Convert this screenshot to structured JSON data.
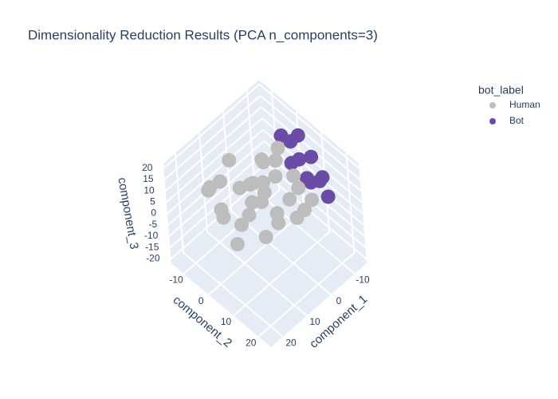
{
  "chart_data": {
    "type": "scatter3d",
    "title": "Dimensionality Reduction Results (PCA n_components=3)",
    "legend_title": "bot_label",
    "xlabel": "component_1",
    "ylabel": "component_2",
    "zlabel": "component_3",
    "xlim": [
      -15,
      25
    ],
    "ylim": [
      -15,
      25
    ],
    "zlim": [
      -22,
      22
    ],
    "xticks": [
      -10,
      0,
      10,
      20
    ],
    "yticks": [
      -10,
      0,
      10,
      20
    ],
    "zticks": [
      -20,
      -15,
      -10,
      -5,
      0,
      5,
      10,
      15,
      20
    ],
    "series": [
      {
        "name": "Human",
        "color": "#bdbdbd",
        "x": [
          0,
          5,
          -5,
          10,
          -8,
          3,
          8,
          -3,
          12,
          -10,
          6,
          -6,
          2,
          14,
          -2,
          9,
          -12,
          4,
          -4,
          1,
          11,
          7,
          -7,
          0,
          15,
          -1,
          13,
          -9,
          3,
          -11
        ],
        "y": [
          0,
          -5,
          5,
          0,
          -3,
          8,
          -10,
          -8,
          -6,
          2,
          5,
          10,
          -12,
          2,
          3,
          9,
          -6,
          -3,
          -4,
          6,
          -12,
          2,
          7,
          -6,
          -2,
          12,
          -9,
          -10,
          3,
          8
        ],
        "z": [
          0,
          2,
          -3,
          -5,
          4,
          1,
          3,
          -6,
          -2,
          0,
          6,
          -4,
          5,
          -8,
          8,
          -3,
          3,
          -9,
          6,
          -7,
          0,
          4,
          2,
          -2,
          1,
          -1,
          6,
          -3,
          10,
          -6
        ]
      },
      {
        "name": "Bot",
        "color": "#6a4ca6",
        "x": [
          -10,
          -12,
          -8,
          -13,
          -11,
          -6,
          -14,
          -9,
          -12,
          -7,
          -13,
          -10
        ],
        "y": [
          5,
          8,
          10,
          2,
          12,
          6,
          10,
          3,
          14,
          11,
          6,
          -2
        ],
        "z": [
          10,
          12,
          8,
          15,
          6,
          13,
          3,
          17,
          0,
          10,
          -2,
          14
        ]
      }
    ]
  }
}
